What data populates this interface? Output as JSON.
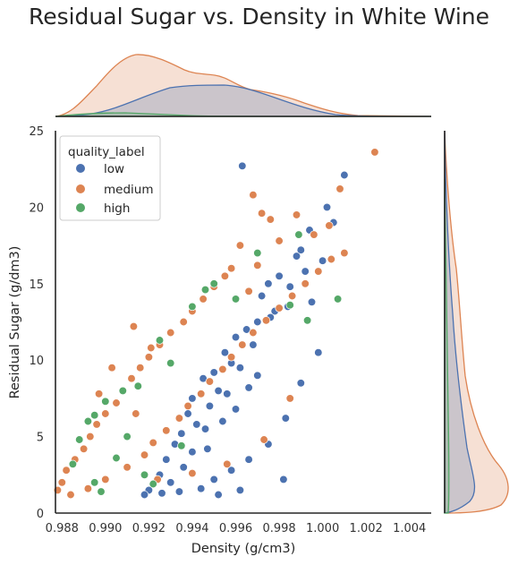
{
  "page": {
    "title": "Residual Sugar vs. Density in White Wine"
  },
  "chart_data": {
    "type": "scatter",
    "title": "Residual Sugar vs. Density in White Wine",
    "xlabel": "Density (g/cm3)",
    "ylabel": "Residual Sugar (g/dm3)",
    "xlim": [
      0.9877,
      1.005
    ],
    "ylim": [
      0,
      25
    ],
    "x_ticks": [
      "0.988",
      "0.990",
      "0.992",
      "0.994",
      "0.996",
      "0.998",
      "1.000",
      "1.002",
      "1.004"
    ],
    "y_ticks": [
      "0",
      "5",
      "10",
      "15",
      "20",
      "25"
    ],
    "x_tick_values": [
      0.988,
      0.99,
      0.992,
      0.994,
      0.996,
      0.998,
      1.0,
      1.002,
      1.004
    ],
    "y_tick_values": [
      0,
      5,
      10,
      15,
      20,
      25
    ],
    "grid": false,
    "legend": {
      "title": "quality_label",
      "placement": "top-left",
      "entries": [
        "low",
        "medium",
        "high"
      ]
    },
    "colors": {
      "low": "#4c72b0",
      "medium": "#dd8452",
      "high": "#55a868"
    },
    "marginals": "kde",
    "series": [
      {
        "name": "low",
        "points": [
          [
            0.9963,
            22.7
          ],
          [
            1.001,
            22.1
          ],
          [
            1.0002,
            20.0
          ],
          [
            0.9994,
            18.5
          ],
          [
            0.999,
            17.2
          ],
          [
            0.9988,
            16.8
          ],
          [
            0.998,
            15.5
          ],
          [
            0.9975,
            15.0
          ],
          [
            0.9972,
            14.2
          ],
          [
            0.9985,
            14.8
          ],
          [
            0.9995,
            13.8
          ],
          [
            0.9978,
            13.2
          ],
          [
            0.997,
            12.5
          ],
          [
            0.9965,
            12.0
          ],
          [
            0.996,
            11.5
          ],
          [
            0.9968,
            11.0
          ],
          [
            0.9955,
            10.5
          ],
          [
            0.9958,
            9.8
          ],
          [
            0.995,
            9.2
          ],
          [
            0.9962,
            9.5
          ],
          [
            0.9945,
            8.8
          ],
          [
            0.9952,
            8.0
          ],
          [
            0.994,
            7.5
          ],
          [
            0.9948,
            7.0
          ],
          [
            0.9956,
            7.8
          ],
          [
            0.9938,
            6.5
          ],
          [
            0.9942,
            5.8
          ],
          [
            0.9935,
            5.2
          ],
          [
            0.9946,
            5.5
          ],
          [
            0.9932,
            4.5
          ],
          [
            0.994,
            4.0
          ],
          [
            0.9928,
            3.5
          ],
          [
            0.9936,
            3.0
          ],
          [
            0.9925,
            2.5
          ],
          [
            0.993,
            2.0
          ],
          [
            0.992,
            1.5
          ],
          [
            0.9934,
            1.4
          ],
          [
            0.9944,
            1.6
          ],
          [
            0.995,
            2.2
          ],
          [
            0.9958,
            2.8
          ],
          [
            0.9966,
            3.5
          ],
          [
            0.9975,
            4.5
          ],
          [
            0.9983,
            6.2
          ],
          [
            0.999,
            8.5
          ],
          [
            0.9998,
            10.5
          ],
          [
            0.9982,
            2.2
          ],
          [
            0.9962,
            1.5
          ],
          [
            0.9952,
            1.2
          ],
          [
            0.9918,
            1.2
          ],
          [
            0.9926,
            1.3
          ],
          [
            0.9976,
            12.8
          ],
          [
            0.9984,
            13.5
          ],
          [
            0.9992,
            15.8
          ],
          [
            1.0,
            16.5
          ],
          [
            1.0005,
            19.0
          ],
          [
            0.997,
            9.0
          ],
          [
            0.9966,
            8.2
          ],
          [
            0.996,
            6.8
          ],
          [
            0.9954,
            6.0
          ],
          [
            0.9947,
            4.2
          ]
        ]
      },
      {
        "name": "medium",
        "points": [
          [
            1.0024,
            23.6
          ],
          [
            1.0008,
            21.2
          ],
          [
            0.9968,
            20.8
          ],
          [
            0.9972,
            19.6
          ],
          [
            0.9976,
            19.2
          ],
          [
            0.9988,
            19.5
          ],
          [
            1.0003,
            18.8
          ],
          [
            0.9996,
            18.2
          ],
          [
            1.001,
            17.0
          ],
          [
            0.9962,
            17.5
          ],
          [
            0.997,
            16.2
          ],
          [
            0.9955,
            15.5
          ],
          [
            0.995,
            14.8
          ],
          [
            0.9945,
            14.0
          ],
          [
            0.994,
            13.2
          ],
          [
            0.9936,
            12.5
          ],
          [
            0.993,
            11.8
          ],
          [
            0.9925,
            11.0
          ],
          [
            0.992,
            10.2
          ],
          [
            0.9916,
            9.5
          ],
          [
            0.9912,
            8.8
          ],
          [
            0.9908,
            8.0
          ],
          [
            0.9905,
            7.2
          ],
          [
            0.99,
            6.5
          ],
          [
            0.9896,
            5.8
          ],
          [
            0.9893,
            5.0
          ],
          [
            0.989,
            4.2
          ],
          [
            0.9886,
            3.5
          ],
          [
            0.9882,
            2.8
          ],
          [
            0.988,
            2.0
          ],
          [
            0.9878,
            1.5
          ],
          [
            0.9884,
            1.2
          ],
          [
            0.9892,
            1.6
          ],
          [
            0.99,
            2.2
          ],
          [
            0.991,
            3.0
          ],
          [
            0.9918,
            3.8
          ],
          [
            0.9922,
            4.6
          ],
          [
            0.9928,
            5.4
          ],
          [
            0.9934,
            6.2
          ],
          [
            0.9938,
            7.0
          ],
          [
            0.9944,
            7.8
          ],
          [
            0.9948,
            8.6
          ],
          [
            0.9954,
            9.4
          ],
          [
            0.9958,
            10.2
          ],
          [
            0.9963,
            11.0
          ],
          [
            0.9968,
            11.8
          ],
          [
            0.9974,
            12.6
          ],
          [
            0.998,
            13.4
          ],
          [
            0.9986,
            14.2
          ],
          [
            0.9992,
            15.0
          ],
          [
            0.9998,
            15.8
          ],
          [
            1.0004,
            16.6
          ],
          [
            0.9913,
            12.2
          ],
          [
            0.9921,
            10.8
          ],
          [
            0.9903,
            9.5
          ],
          [
            0.9897,
            7.8
          ],
          [
            0.9914,
            6.5
          ],
          [
            0.9924,
            2.2
          ],
          [
            0.994,
            2.6
          ],
          [
            0.9956,
            3.2
          ],
          [
            0.9973,
            4.8
          ],
          [
            0.9985,
            7.5
          ],
          [
            0.9966,
            14.5
          ],
          [
            0.9958,
            16.0
          ],
          [
            0.998,
            17.8
          ]
        ]
      },
      {
        "name": "high",
        "points": [
          [
            0.995,
            15.0
          ],
          [
            0.9946,
            14.6
          ],
          [
            0.996,
            14.0
          ],
          [
            0.994,
            13.5
          ],
          [
            0.9925,
            11.3
          ],
          [
            0.9915,
            8.3
          ],
          [
            0.9908,
            8.0
          ],
          [
            0.99,
            7.3
          ],
          [
            0.9895,
            6.4
          ],
          [
            0.9892,
            6.0
          ],
          [
            0.9888,
            4.8
          ],
          [
            0.9885,
            3.2
          ],
          [
            0.9895,
            2.0
          ],
          [
            0.9905,
            3.6
          ],
          [
            0.9922,
            1.9
          ],
          [
            1.0007,
            14.0
          ],
          [
            0.9985,
            13.6
          ],
          [
            0.9993,
            12.6
          ],
          [
            0.993,
            9.8
          ],
          [
            0.991,
            5.0
          ],
          [
            0.9918,
            2.5
          ],
          [
            0.9898,
            1.4
          ],
          [
            0.9935,
            4.4
          ],
          [
            0.997,
            17.0
          ],
          [
            0.9989,
            18.2
          ]
        ]
      }
    ]
  }
}
